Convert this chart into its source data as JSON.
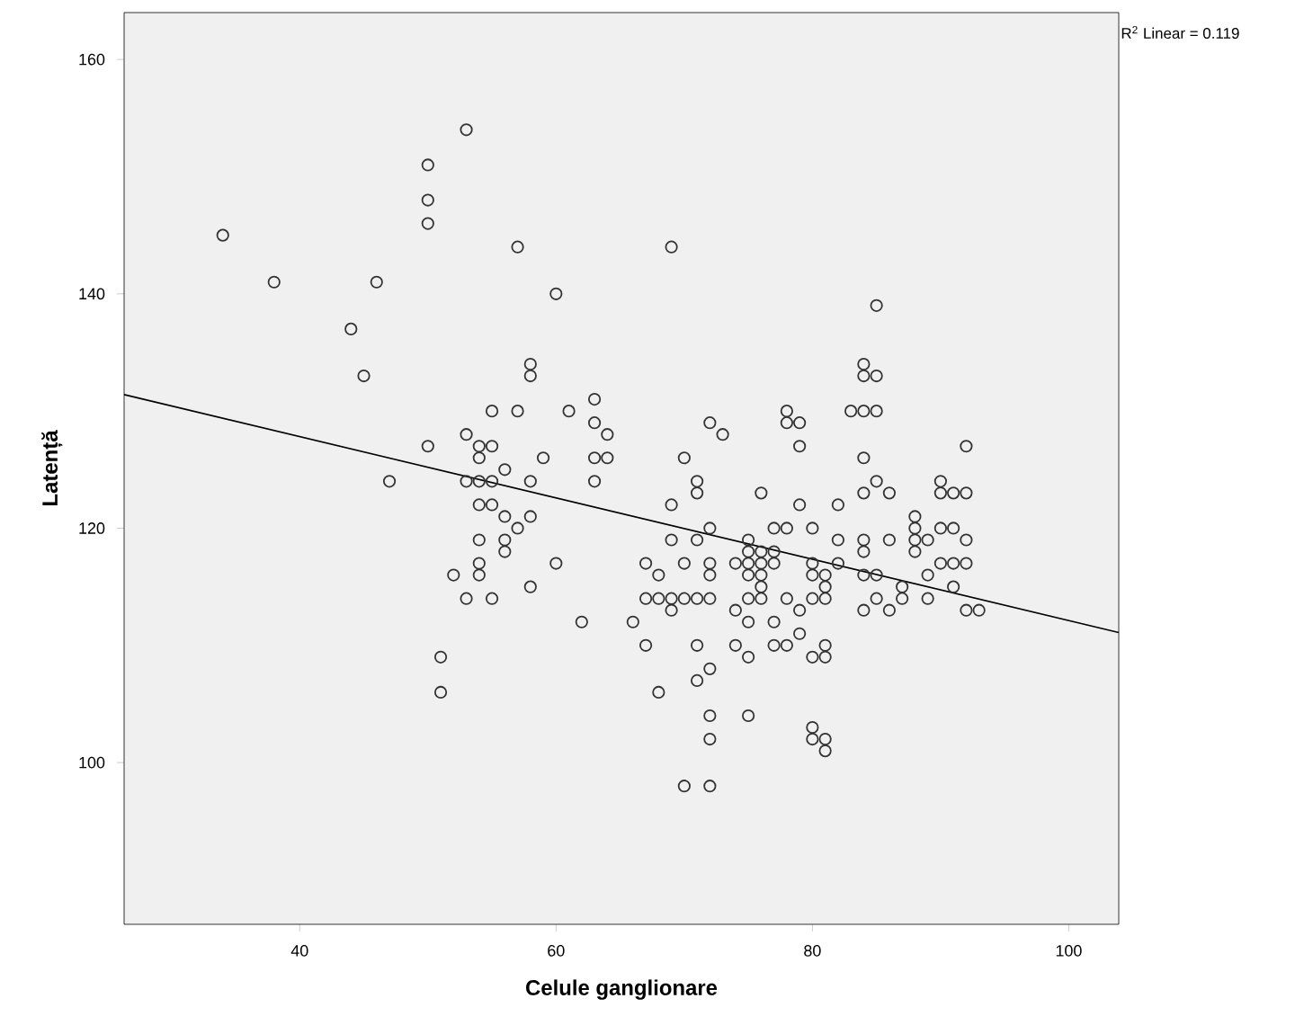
{
  "chart_data": {
    "type": "scatter",
    "xlabel": "Celule ganglionare",
    "ylabel": "Latență",
    "xlim": [
      26.3,
      103.9
    ],
    "ylim": [
      86.2,
      164
    ],
    "xticks": [
      40,
      60,
      80,
      100
    ],
    "yticks": [
      100,
      120,
      140,
      160
    ],
    "grid": false,
    "annotations": [
      "R$^{2}$ Linear = 0.119"
    ],
    "series": [
      {
        "color": "#333333",
        "marker": "circle",
        "x": [
          34,
          38,
          46,
          44,
          45,
          47,
          53,
          50,
          50,
          50,
          50,
          51,
          51,
          52,
          53,
          53,
          53,
          54,
          54,
          54,
          54,
          54,
          54,
          54,
          55,
          55,
          55,
          55,
          55,
          56,
          56,
          56,
          56,
          57,
          57,
          57,
          58,
          58,
          58,
          58,
          58,
          59,
          60,
          60,
          61,
          62,
          63,
          63,
          63,
          63,
          64,
          64,
          66,
          67,
          67,
          67,
          68,
          68,
          68,
          69,
          69,
          69,
          69,
          69,
          70,
          70,
          70,
          70,
          71,
          71,
          71,
          71,
          71,
          71,
          72,
          72,
          72,
          72,
          72,
          72,
          72,
          72,
          72,
          73,
          74,
          74,
          74,
          75,
          75,
          75,
          75,
          75,
          75,
          75,
          75,
          76,
          76,
          76,
          76,
          76,
          76,
          77,
          77,
          77,
          77,
          77,
          78,
          78,
          78,
          78,
          78,
          79,
          79,
          79,
          79,
          79,
          80,
          80,
          80,
          80,
          80,
          80,
          80,
          81,
          81,
          81,
          81,
          81,
          81,
          81,
          82,
          82,
          82,
          83,
          84,
          84,
          84,
          84,
          84,
          84,
          84,
          84,
          84,
          85,
          85,
          85,
          85,
          85,
          85,
          86,
          86,
          86,
          87,
          87,
          88,
          88,
          88,
          88,
          89,
          89,
          89,
          90,
          90,
          90,
          90,
          91,
          91,
          91,
          91,
          92,
          92,
          92,
          92,
          92,
          93
        ],
        "values": [
          145,
          141,
          141,
          137,
          133,
          124,
          154,
          151,
          148,
          146,
          127,
          109,
          106,
          116,
          128,
          124,
          114,
          127,
          126,
          124,
          122,
          119,
          117,
          116,
          130,
          127,
          124,
          122,
          114,
          125,
          121,
          119,
          118,
          130,
          144,
          120,
          134,
          133,
          124,
          121,
          115,
          126,
          140,
          117,
          130,
          112,
          131,
          129,
          126,
          124,
          128,
          126,
          112,
          117,
          114,
          110,
          116,
          114,
          106,
          144,
          122,
          119,
          114,
          113,
          126,
          117,
          114,
          98,
          124,
          123,
          119,
          114,
          110,
          107,
          129,
          120,
          117,
          116,
          114,
          108,
          104,
          102,
          98,
          128,
          117,
          113,
          110,
          119,
          118,
          117,
          116,
          114,
          112,
          109,
          104,
          123,
          118,
          117,
          116,
          115,
          114,
          120,
          118,
          117,
          112,
          110,
          130,
          129,
          120,
          114,
          110,
          129,
          127,
          122,
          113,
          111,
          120,
          117,
          116,
          114,
          109,
          103,
          102,
          116,
          115,
          114,
          110,
          109,
          102,
          101,
          122,
          119,
          117,
          130,
          134,
          133,
          130,
          126,
          123,
          119,
          118,
          116,
          113,
          139,
          133,
          130,
          124,
          116,
          114,
          123,
          119,
          113,
          115,
          114,
          121,
          120,
          119,
          118,
          119,
          116,
          114,
          124,
          123,
          120,
          117,
          123,
          120,
          117,
          115,
          127,
          123,
          119,
          117,
          113,
          113
        ]
      },
      {
        "type": "line",
        "color": "#000000",
        "x": [
          26.3,
          103.9
        ],
        "values": [
          131.4,
          111.1
        ]
      }
    ]
  }
}
